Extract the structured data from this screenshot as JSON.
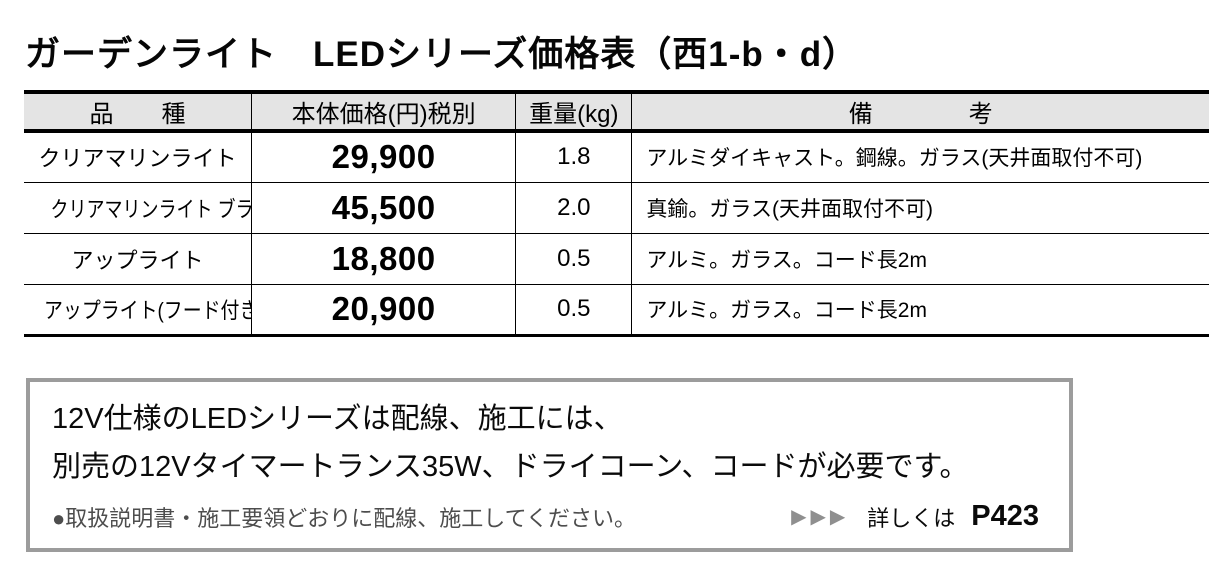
{
  "page": {
    "title": "ガーデンライト　LEDシリーズ価格表（西1-b・d）"
  },
  "table": {
    "columns": [
      "品　　種",
      "本体価格(円)税別",
      "重量(kg)",
      "備　　　　考"
    ],
    "rows": [
      {
        "name": "クリアマリンライト",
        "price": "29,900",
        "weight": "1.8",
        "remark": "アルミダイキャスト。鋼線。ガラス(天井面取付不可)"
      },
      {
        "name": "クリアマリンライト ブラス",
        "price": "45,500",
        "weight": "2.0",
        "remark": "真鍮。ガラス(天井面取付不可)"
      },
      {
        "name": "アップライト",
        "price": "18,800",
        "weight": "0.5",
        "remark": "アルミ。ガラス。コード長2m"
      },
      {
        "name": "アップライト(フード付き)",
        "price": "20,900",
        "weight": "0.5",
        "remark": "アルミ。ガラス。コード長2m"
      }
    ]
  },
  "notice": {
    "line1": "12V仕様のLEDシリーズは配線、施工には、",
    "line2": "別売の12Vタイマートランス35W、ドライコーン、コードが必要です。",
    "note": "●取扱説明書・施工要領どおりに配線、施工してください。",
    "arrows": "▶▶▶",
    "more_label": "詳しくは",
    "more_page": "P423"
  },
  "colors": {
    "header_background": "#e4e4e4",
    "table_border": "#000000",
    "notice_border": "#9c9c9c",
    "note_text": "#4d4d4d",
    "arrow": "#8f8f8f"
  }
}
